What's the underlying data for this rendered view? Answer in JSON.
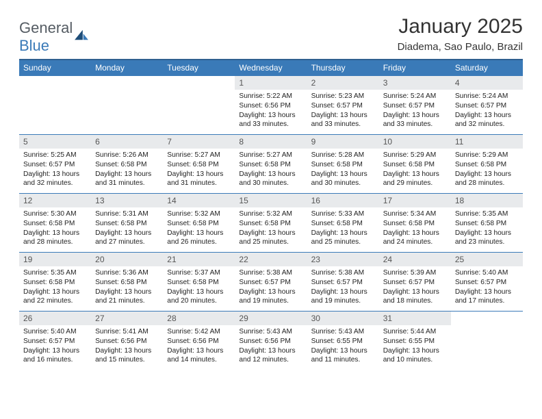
{
  "logo": {
    "word1": "General",
    "word2": "Blue"
  },
  "title": "January 2025",
  "location": "Diadema, Sao Paulo, Brazil",
  "header_color": "#3a7ab8",
  "header_border": "#2e5f8f",
  "daynum_bg": "#e8eaec",
  "text_color": "#222222",
  "dow": [
    "Sunday",
    "Monday",
    "Tuesday",
    "Wednesday",
    "Thursday",
    "Friday",
    "Saturday"
  ],
  "weeks": [
    [
      null,
      null,
      null,
      {
        "n": "1",
        "sr": "5:22 AM",
        "ss": "6:56 PM",
        "dl": "13 hours and 33 minutes."
      },
      {
        "n": "2",
        "sr": "5:23 AM",
        "ss": "6:57 PM",
        "dl": "13 hours and 33 minutes."
      },
      {
        "n": "3",
        "sr": "5:24 AM",
        "ss": "6:57 PM",
        "dl": "13 hours and 33 minutes."
      },
      {
        "n": "4",
        "sr": "5:24 AM",
        "ss": "6:57 PM",
        "dl": "13 hours and 32 minutes."
      }
    ],
    [
      {
        "n": "5",
        "sr": "5:25 AM",
        "ss": "6:57 PM",
        "dl": "13 hours and 32 minutes."
      },
      {
        "n": "6",
        "sr": "5:26 AM",
        "ss": "6:58 PM",
        "dl": "13 hours and 31 minutes."
      },
      {
        "n": "7",
        "sr": "5:27 AM",
        "ss": "6:58 PM",
        "dl": "13 hours and 31 minutes."
      },
      {
        "n": "8",
        "sr": "5:27 AM",
        "ss": "6:58 PM",
        "dl": "13 hours and 30 minutes."
      },
      {
        "n": "9",
        "sr": "5:28 AM",
        "ss": "6:58 PM",
        "dl": "13 hours and 30 minutes."
      },
      {
        "n": "10",
        "sr": "5:29 AM",
        "ss": "6:58 PM",
        "dl": "13 hours and 29 minutes."
      },
      {
        "n": "11",
        "sr": "5:29 AM",
        "ss": "6:58 PM",
        "dl": "13 hours and 28 minutes."
      }
    ],
    [
      {
        "n": "12",
        "sr": "5:30 AM",
        "ss": "6:58 PM",
        "dl": "13 hours and 28 minutes."
      },
      {
        "n": "13",
        "sr": "5:31 AM",
        "ss": "6:58 PM",
        "dl": "13 hours and 27 minutes."
      },
      {
        "n": "14",
        "sr": "5:32 AM",
        "ss": "6:58 PM",
        "dl": "13 hours and 26 minutes."
      },
      {
        "n": "15",
        "sr": "5:32 AM",
        "ss": "6:58 PM",
        "dl": "13 hours and 25 minutes."
      },
      {
        "n": "16",
        "sr": "5:33 AM",
        "ss": "6:58 PM",
        "dl": "13 hours and 25 minutes."
      },
      {
        "n": "17",
        "sr": "5:34 AM",
        "ss": "6:58 PM",
        "dl": "13 hours and 24 minutes."
      },
      {
        "n": "18",
        "sr": "5:35 AM",
        "ss": "6:58 PM",
        "dl": "13 hours and 23 minutes."
      }
    ],
    [
      {
        "n": "19",
        "sr": "5:35 AM",
        "ss": "6:58 PM",
        "dl": "13 hours and 22 minutes."
      },
      {
        "n": "20",
        "sr": "5:36 AM",
        "ss": "6:58 PM",
        "dl": "13 hours and 21 minutes."
      },
      {
        "n": "21",
        "sr": "5:37 AM",
        "ss": "6:58 PM",
        "dl": "13 hours and 20 minutes."
      },
      {
        "n": "22",
        "sr": "5:38 AM",
        "ss": "6:57 PM",
        "dl": "13 hours and 19 minutes."
      },
      {
        "n": "23",
        "sr": "5:38 AM",
        "ss": "6:57 PM",
        "dl": "13 hours and 19 minutes."
      },
      {
        "n": "24",
        "sr": "5:39 AM",
        "ss": "6:57 PM",
        "dl": "13 hours and 18 minutes."
      },
      {
        "n": "25",
        "sr": "5:40 AM",
        "ss": "6:57 PM",
        "dl": "13 hours and 17 minutes."
      }
    ],
    [
      {
        "n": "26",
        "sr": "5:40 AM",
        "ss": "6:57 PM",
        "dl": "13 hours and 16 minutes."
      },
      {
        "n": "27",
        "sr": "5:41 AM",
        "ss": "6:56 PM",
        "dl": "13 hours and 15 minutes."
      },
      {
        "n": "28",
        "sr": "5:42 AM",
        "ss": "6:56 PM",
        "dl": "13 hours and 14 minutes."
      },
      {
        "n": "29",
        "sr": "5:43 AM",
        "ss": "6:56 PM",
        "dl": "13 hours and 12 minutes."
      },
      {
        "n": "30",
        "sr": "5:43 AM",
        "ss": "6:55 PM",
        "dl": "13 hours and 11 minutes."
      },
      {
        "n": "31",
        "sr": "5:44 AM",
        "ss": "6:55 PM",
        "dl": "13 hours and 10 minutes."
      },
      null
    ]
  ],
  "labels": {
    "sunrise": "Sunrise:",
    "sunset": "Sunset:",
    "daylight": "Daylight:"
  }
}
